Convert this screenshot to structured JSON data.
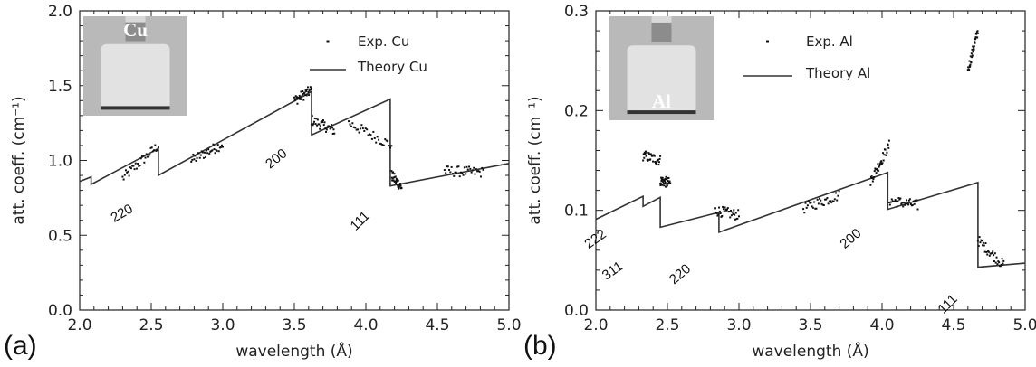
{
  "chart_data": [
    {
      "type": "line",
      "panel_label": "(a)",
      "xlabel": "wavelength (Å)",
      "ylabel": "att. coeff. (cm⁻¹)",
      "xlim": [
        2.0,
        5.0
      ],
      "ylim": [
        0.0,
        2.0
      ],
      "xticks": [
        "2.0",
        "2.5",
        "3.0",
        "3.5",
        "4.0",
        "4.5",
        "5.0"
      ],
      "yticks": [
        "0.0",
        "0.5",
        "1.0",
        "1.5",
        "2.0"
      ],
      "legend": [
        "Exp. Cu",
        "Theory Cu"
      ],
      "legend_position": "top-right",
      "inset_label": "Cu",
      "series": [
        {
          "name": "Theory Cu",
          "style": "line",
          "x": [
            2.0,
            2.08,
            2.08,
            2.55,
            2.55,
            3.62,
            3.62,
            4.17,
            4.17,
            5.0
          ],
          "y": [
            0.86,
            0.89,
            0.84,
            1.08,
            0.9,
            1.46,
            1.17,
            1.41,
            0.83,
            0.98
          ]
        },
        {
          "name": "Exp. Cu",
          "style": "points",
          "segments": [
            {
              "x": [
                2.3,
                2.55
              ],
              "y": [
                0.88,
                1.1
              ]
            },
            {
              "x": [
                2.78,
                3.0
              ],
              "y": [
                1.0,
                1.11
              ]
            },
            {
              "x": [
                3.5,
                3.62
              ],
              "y": [
                1.4,
                1.47
              ]
            },
            {
              "x": [
                3.62,
                3.78
              ],
              "y": [
                1.27,
                1.2
              ]
            },
            {
              "x": [
                3.88,
                4.18
              ],
              "y": [
                1.25,
                1.1
              ]
            },
            {
              "x": [
                4.18,
                4.25
              ],
              "y": [
                0.9,
                0.82
              ]
            },
            {
              "x": [
                4.55,
                4.82
              ],
              "y": [
                0.93,
                0.92
              ]
            }
          ]
        }
      ],
      "annotations": [
        {
          "text": "220",
          "x": 2.55
        },
        {
          "text": "200",
          "x": 3.62
        },
        {
          "text": "111",
          "x": 4.17
        }
      ]
    },
    {
      "type": "line",
      "panel_label": "(b)",
      "xlabel": "wavelength (Å)",
      "ylabel": "att. coeff. (cm⁻¹)",
      "xlim": [
        2.0,
        5.0
      ],
      "ylim": [
        0.0,
        0.3
      ],
      "xticks": [
        "2.0",
        "2.5",
        "3.0",
        "3.5",
        "4.0",
        "4.5",
        "5.0"
      ],
      "yticks": [
        "0.0",
        "0.1",
        "0.2",
        "0.3"
      ],
      "legend": [
        "Exp. Al",
        "Theory Al"
      ],
      "legend_position": "top-center",
      "inset_label": "Al",
      "series": [
        {
          "name": "Theory Al",
          "style": "line",
          "x": [
            2.0,
            2.33,
            2.33,
            2.45,
            2.45,
            2.86,
            2.86,
            4.04,
            4.04,
            4.67,
            4.67,
            5.0
          ],
          "y": [
            0.091,
            0.114,
            0.104,
            0.113,
            0.083,
            0.098,
            0.078,
            0.138,
            0.101,
            0.128,
            0.043,
            0.047
          ]
        },
        {
          "name": "Exp. Al",
          "style": "points",
          "segments": [
            {
              "x": [
                2.33,
                2.45
              ],
              "y": [
                0.155,
                0.15
              ]
            },
            {
              "x": [
                2.45,
                2.52
              ],
              "y": [
                0.13,
                0.127
              ]
            },
            {
              "x": [
                2.83,
                3.0
              ],
              "y": [
                0.1,
                0.095
              ]
            },
            {
              "x": [
                3.45,
                3.7
              ],
              "y": [
                0.102,
                0.115
              ]
            },
            {
              "x": [
                3.92,
                4.05
              ],
              "y": [
                0.13,
                0.165
              ]
            },
            {
              "x": [
                4.05,
                4.25
              ],
              "y": [
                0.11,
                0.105
              ]
            },
            {
              "x": [
                4.6,
                4.67
              ],
              "y": [
                0.24,
                0.28
              ]
            },
            {
              "x": [
                4.67,
                4.85
              ],
              "y": [
                0.07,
                0.045
              ]
            }
          ]
        }
      ],
      "annotations": [
        {
          "text": "222",
          "x": 2.33
        },
        {
          "text": "311",
          "x": 2.45
        },
        {
          "text": "220",
          "x": 2.86
        },
        {
          "text": "200",
          "x": 4.04
        },
        {
          "text": "111",
          "x": 4.67
        }
      ]
    }
  ]
}
